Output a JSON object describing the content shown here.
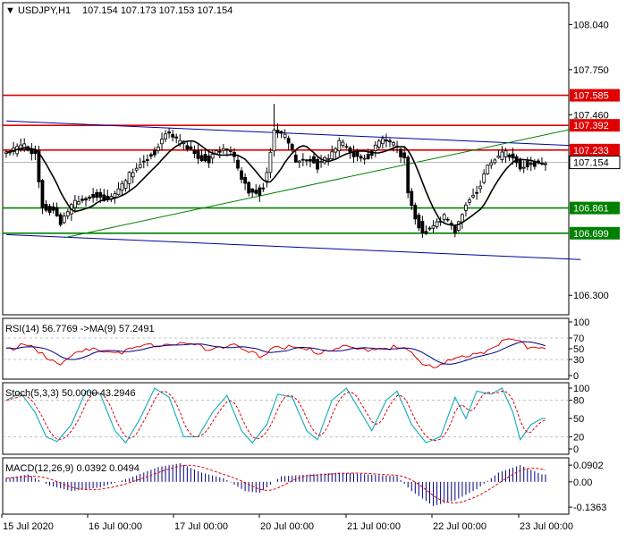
{
  "chart_data": {
    "type": "candlestick",
    "header": {
      "symbol": "USDJPY,H1",
      "ohlc": "107.154 107.173 107.153 107.154"
    },
    "price_axis": {
      "ylim": [
        106.175,
        108.18
      ],
      "ticks": [
        "108.040",
        "107.750",
        "107.460",
        "106.300"
      ],
      "current": "107.154"
    },
    "levels": [
      {
        "value": 107.585,
        "label": "107.585",
        "color": "#e00000"
      },
      {
        "value": 107.392,
        "label": "107.392",
        "color": "#e00000"
      },
      {
        "value": 107.233,
        "label": "107.233",
        "color": "#e00000"
      },
      {
        "value": 106.861,
        "label": "106.861",
        "color": "#008000"
      },
      {
        "value": 106.699,
        "label": "106.699",
        "color": "#008000"
      }
    ],
    "trendlines": [
      {
        "name": "upper-channel",
        "color": "#0000a0",
        "from": [
          0,
          107.42
        ],
        "to": [
          155,
          107.26
        ]
      },
      {
        "name": "lower-channel",
        "color": "#0000a0",
        "from": [
          0,
          106.69
        ],
        "to": [
          155,
          106.53
        ]
      },
      {
        "name": "support-trend",
        "color": "#008000",
        "from": [
          16,
          106.67
        ],
        "to": [
          155,
          107.38
        ]
      }
    ],
    "x_axis": {
      "labels": [
        "15 Jul 2020",
        "16 Jul 00:00",
        "17 Jul 00:00",
        "20 Jul 00:00",
        "21 Jul 00:00",
        "22 Jul 00:00",
        "23 Jul 00:00"
      ]
    },
    "price_anchors": [
      [
        0,
        107.22
      ],
      [
        5,
        107.27
      ],
      [
        8,
        107.24
      ],
      [
        10,
        106.88
      ],
      [
        13,
        106.86
      ],
      [
        15,
        106.76
      ],
      [
        18,
        106.89
      ],
      [
        21,
        106.95
      ],
      [
        25,
        106.97
      ],
      [
        28,
        106.92
      ],
      [
        31,
        106.97
      ],
      [
        35,
        107.12
      ],
      [
        38,
        107.2
      ],
      [
        41,
        107.23
      ],
      [
        44,
        107.35
      ],
      [
        47,
        107.3
      ],
      [
        50,
        107.28
      ],
      [
        53,
        107.22
      ],
      [
        56,
        107.19
      ],
      [
        59,
        107.23
      ],
      [
        62,
        107.24
      ],
      [
        64,
        107.12
      ],
      [
        67,
        107.0
      ],
      [
        70,
        106.98
      ],
      [
        72,
        107.08
      ],
      [
        74,
        107.37
      ],
      [
        77,
        107.33
      ],
      [
        80,
        107.18
      ],
      [
        83,
        107.2
      ],
      [
        86,
        107.15
      ],
      [
        89,
        107.18
      ],
      [
        92,
        107.28
      ],
      [
        95,
        107.25
      ],
      [
        98,
        107.2
      ],
      [
        101,
        107.23
      ],
      [
        104,
        107.3
      ],
      [
        107,
        107.28
      ],
      [
        110,
        107.2
      ],
      [
        111,
        106.98
      ],
      [
        113,
        106.82
      ],
      [
        115,
        106.72
      ],
      [
        118,
        106.74
      ],
      [
        121,
        106.81
      ],
      [
        124,
        106.74
      ],
      [
        127,
        106.92
      ],
      [
        130,
        106.98
      ],
      [
        133,
        107.14
      ],
      [
        136,
        107.2
      ],
      [
        139,
        107.23
      ],
      [
        142,
        107.15
      ],
      [
        145,
        107.16
      ],
      [
        148,
        107.15
      ]
    ],
    "rsi": {
      "label": "RSI(14) 56.7769  ->MA(9) 57.2491",
      "ylim": [
        0,
        100
      ],
      "ticks": [
        "100",
        "70",
        "50",
        "30",
        "0"
      ],
      "value_anchors": [
        [
          0,
          55
        ],
        [
          6,
          58
        ],
        [
          10,
          40
        ],
        [
          15,
          28
        ],
        [
          20,
          45
        ],
        [
          26,
          52
        ],
        [
          32,
          48
        ],
        [
          38,
          55
        ],
        [
          44,
          65
        ],
        [
          50,
          60
        ],
        [
          56,
          55
        ],
        [
          62,
          62
        ],
        [
          66,
          45
        ],
        [
          70,
          40
        ],
        [
          75,
          62
        ],
        [
          80,
          52
        ],
        [
          86,
          48
        ],
        [
          92,
          56
        ],
        [
          98,
          50
        ],
        [
          104,
          58
        ],
        [
          110,
          52
        ],
        [
          114,
          30
        ],
        [
          118,
          22
        ],
        [
          122,
          30
        ],
        [
          128,
          38
        ],
        [
          134,
          55
        ],
        [
          139,
          70
        ],
        [
          144,
          58
        ],
        [
          148,
          57
        ]
      ]
    },
    "stoch": {
      "label": "Stoch(5,3,3) 50.0000  43.2946",
      "ylim": [
        0,
        100
      ],
      "ticks": [
        "100",
        "80",
        "50",
        "20",
        "0"
      ],
      "value_anchors": [
        [
          0,
          80
        ],
        [
          4,
          92
        ],
        [
          8,
          60
        ],
        [
          11,
          20
        ],
        [
          14,
          12
        ],
        [
          18,
          40
        ],
        [
          22,
          95
        ],
        [
          26,
          90
        ],
        [
          30,
          30
        ],
        [
          33,
          10
        ],
        [
          37,
          50
        ],
        [
          41,
          100
        ],
        [
          45,
          85
        ],
        [
          49,
          20
        ],
        [
          53,
          20
        ],
        [
          57,
          60
        ],
        [
          61,
          88
        ],
        [
          65,
          30
        ],
        [
          68,
          10
        ],
        [
          72,
          40
        ],
        [
          75,
          90
        ],
        [
          79,
          85
        ],
        [
          83,
          30
        ],
        [
          86,
          15
        ],
        [
          90,
          80
        ],
        [
          94,
          100
        ],
        [
          98,
          60
        ],
        [
          101,
          30
        ],
        [
          105,
          80
        ],
        [
          108,
          95
        ],
        [
          112,
          40
        ],
        [
          116,
          10
        ],
        [
          120,
          20
        ],
        [
          124,
          85
        ],
        [
          127,
          50
        ],
        [
          130,
          95
        ],
        [
          134,
          90
        ],
        [
          137,
          100
        ],
        [
          140,
          60
        ],
        [
          142,
          15
        ],
        [
          145,
          40
        ],
        [
          148,
          50
        ]
      ]
    },
    "macd": {
      "label": "MACD(12,26,9) 0.0392  0.0494",
      "ticks": [
        "0.0902",
        "0.00",
        "-0.1363"
      ],
      "range": [
        -0.16,
        0.115
      ],
      "value_anchors": [
        [
          0,
          0.02
        ],
        [
          6,
          0.04
        ],
        [
          12,
          -0.02
        ],
        [
          18,
          -0.05
        ],
        [
          26,
          -0.03
        ],
        [
          34,
          0.02
        ],
        [
          42,
          0.08
        ],
        [
          48,
          0.1
        ],
        [
          54,
          0.05
        ],
        [
          60,
          0.02
        ],
        [
          66,
          -0.05
        ],
        [
          70,
          -0.06
        ],
        [
          76,
          0.03
        ],
        [
          84,
          0.04
        ],
        [
          92,
          0.05
        ],
        [
          100,
          0.04
        ],
        [
          108,
          0.03
        ],
        [
          112,
          -0.05
        ],
        [
          118,
          -0.13
        ],
        [
          124,
          -0.1
        ],
        [
          130,
          -0.04
        ],
        [
          136,
          0.05
        ],
        [
          142,
          0.09
        ],
        [
          148,
          0.04
        ]
      ]
    }
  }
}
